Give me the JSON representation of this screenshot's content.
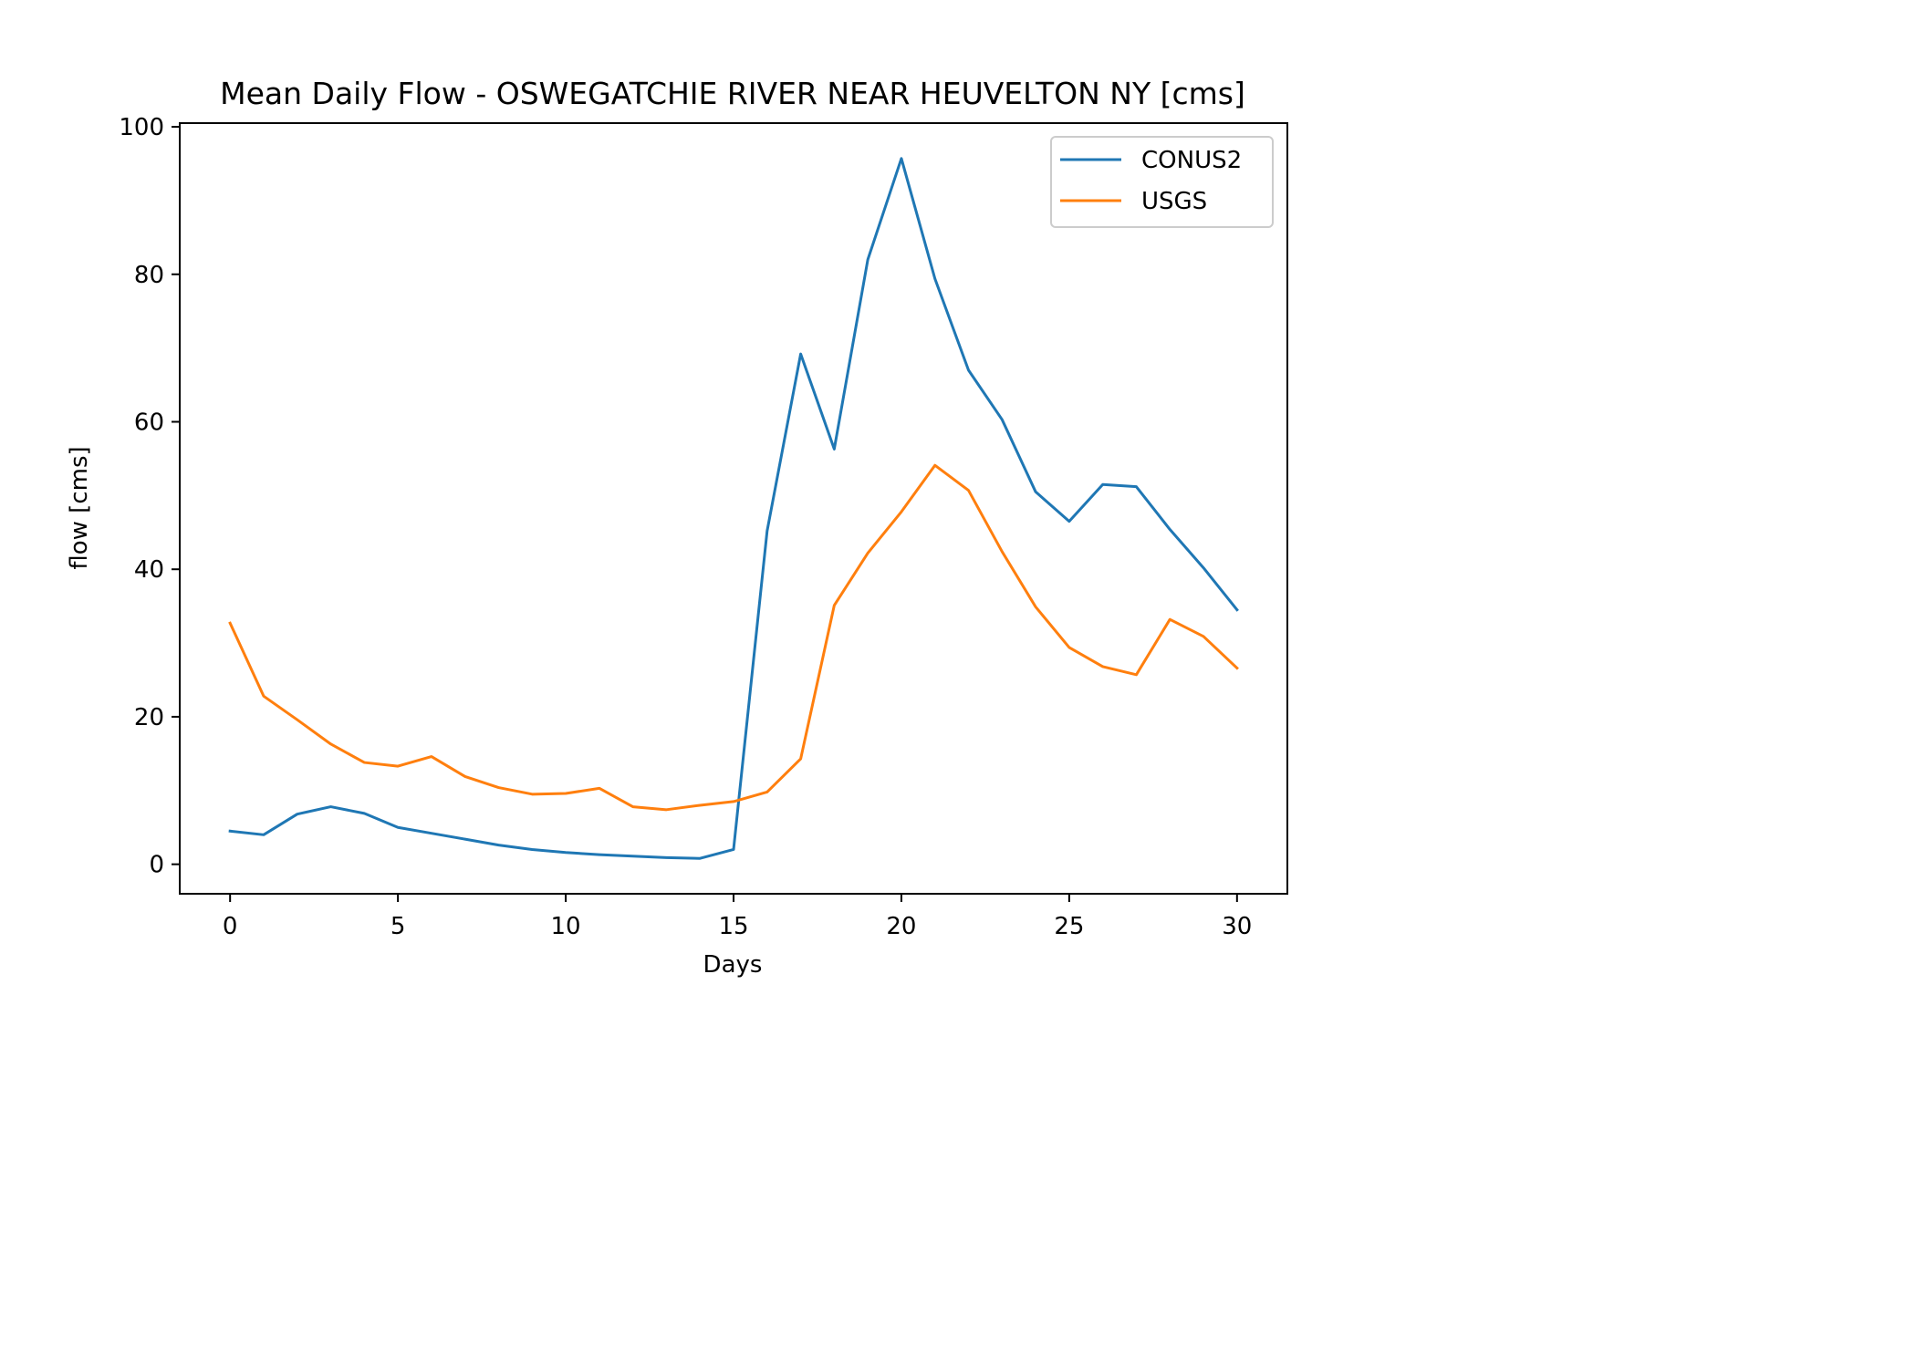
{
  "chart_data": {
    "type": "line",
    "title": "Mean Daily Flow - OSWEGATCHIE RIVER NEAR HEUVELTON NY [cms]",
    "xlabel": "Days",
    "ylabel": "flow [cms]",
    "xlim": [
      -1.5,
      31.5
    ],
    "ylim": [
      -4,
      100.5
    ],
    "xticks": [
      0,
      5,
      10,
      15,
      20,
      25,
      30
    ],
    "yticks": [
      0,
      20,
      40,
      60,
      80,
      100
    ],
    "xtick_labels": [
      "0",
      "5",
      "10",
      "15",
      "20",
      "25",
      "30"
    ],
    "ytick_labels": [
      "0",
      "20",
      "40",
      "60",
      "80",
      "100"
    ],
    "grid": false,
    "legend_position": "top-right",
    "x": [
      0,
      1,
      2,
      3,
      4,
      5,
      6,
      7,
      8,
      9,
      10,
      11,
      12,
      13,
      14,
      15,
      16,
      17,
      18,
      19,
      20,
      21,
      22,
      23,
      24,
      25,
      26,
      27,
      28,
      29,
      30
    ],
    "series": [
      {
        "name": "CONUS2",
        "color": "#1f77b4",
        "values": [
          4.5,
          4.0,
          6.8,
          7.8,
          6.9,
          5.0,
          4.2,
          3.4,
          2.6,
          2.0,
          1.6,
          1.3,
          1.1,
          0.9,
          0.8,
          2.0,
          45.2,
          69.2,
          56.3,
          82.0,
          95.7,
          79.4,
          67.0,
          60.3,
          50.5,
          46.5,
          51.5,
          51.2,
          45.4,
          40.2,
          34.5
        ]
      },
      {
        "name": "USGS",
        "color": "#ff7f0e",
        "values": [
          32.7,
          22.8,
          19.6,
          16.3,
          13.8,
          13.3,
          14.6,
          11.9,
          10.4,
          9.5,
          9.6,
          10.3,
          7.8,
          7.4,
          8.0,
          8.5,
          9.8,
          14.3,
          35.1,
          42.2,
          47.8,
          54.1,
          50.7,
          42.4,
          34.9,
          29.4,
          26.8,
          25.7,
          33.2,
          30.9,
          26.6
        ]
      }
    ]
  }
}
